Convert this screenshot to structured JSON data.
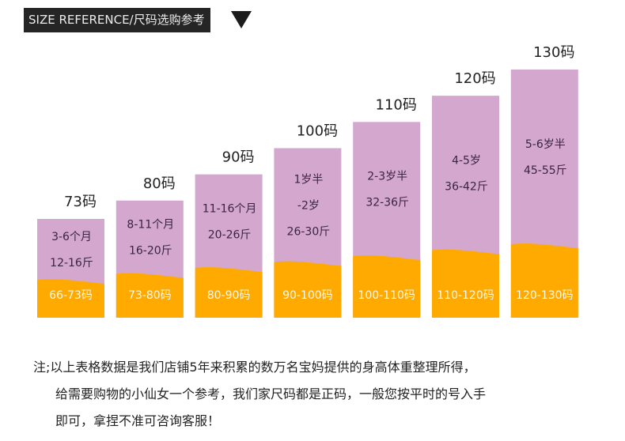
{
  "header": {
    "title": "SIZE REFERENCE/尺码选购参考",
    "indicator_icon": "triangle-down-icon"
  },
  "colors": {
    "header_bg": "#252525",
    "header_text": "#ececec",
    "age_band": "#d4a7cf",
    "height_band": "#ffaa00",
    "info_text": "#3a2440",
    "range_text": "#fff8ea"
  },
  "chart_data": {
    "type": "bar",
    "title": "SIZE REFERENCE/尺码选购参考",
    "xlabel": "",
    "ylabel": "",
    "grid": false,
    "legend": "none",
    "categories": [
      "73码",
      "80码",
      "90码",
      "100码",
      "110码",
      "120码",
      "130码"
    ],
    "series": [
      {
        "name": "size",
        "values": [
          73,
          80,
          90,
          100,
          110,
          120,
          130
        ]
      }
    ],
    "bars": [
      {
        "size": "73码",
        "age": [
          "3-6个月"
        ],
        "weight": "12-16斤",
        "height_range": "66-73码"
      },
      {
        "size": "80码",
        "age": [
          "8-11个月"
        ],
        "weight": "16-20斤",
        "height_range": "73-80码"
      },
      {
        "size": "90码",
        "age": [
          "11-16个月"
        ],
        "weight": "20-26斤",
        "height_range": "80-90码"
      },
      {
        "size": "100码",
        "age": [
          "1岁半",
          "-2岁"
        ],
        "weight": "26-30斤",
        "height_range": "90-100码"
      },
      {
        "size": "110码",
        "age": [
          "2-3岁半"
        ],
        "weight": "32-36斤",
        "height_range": "100-110码"
      },
      {
        "size": "120码",
        "age": [
          "4-5岁"
        ],
        "weight": "36-42斤",
        "height_range": "110-120码"
      },
      {
        "size": "130码",
        "age": [
          "5-6岁半"
        ],
        "weight": "45-55斤",
        "height_range": "120-130码"
      }
    ],
    "ylim": [
      0,
      130
    ]
  },
  "note": {
    "line1": "注;以上表格数据是我们店铺5年来积累的数万名宝妈提供的身高体重整理所得，",
    "line2": "给需要购物的小仙女一个参考，我们家尺码都是正码，一般您按平时的号入手",
    "line3": "即可，拿捏不准可咨询客服！"
  }
}
